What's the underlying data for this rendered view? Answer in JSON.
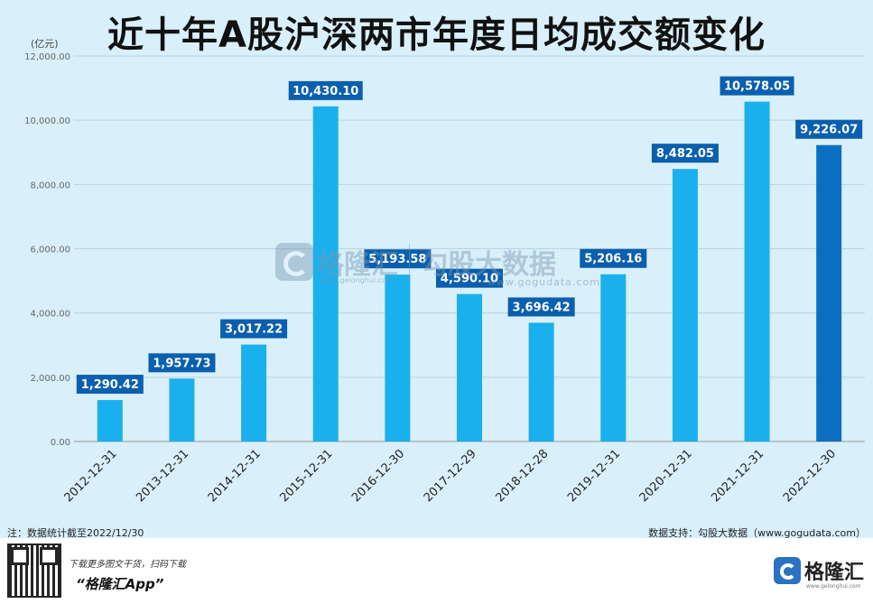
{
  "title": "近十年A股沪深两市年度日均成交额变化",
  "unit_label": "(亿元)",
  "note": "注：数据统计截至2022/12/30",
  "source": "数据支持：勾股大数据（www.gogudata.com）",
  "watermark": {
    "brand": "格隆汇",
    "brand_url": "www.gelonghui.com",
    "sub": "勾股大数据",
    "sub_url": "www.gogudata.com"
  },
  "footer": {
    "text1": "下载更多图文干货，扫码下载",
    "text2": "“格隆汇App”",
    "logo_text": "格隆汇",
    "logo_url": "www.gelonghui.com"
  },
  "colors": {
    "bar": "#1ab0ee",
    "bar_highlight": "#0a6fc2",
    "label_bg": "#0a5fae",
    "background": "#d9f0fb"
  },
  "chart_data": {
    "type": "bar",
    "title": "近十年A股沪深两市年度日均成交额变化",
    "ylabel": "(亿元)",
    "xlabel": "",
    "ylim": [
      0,
      12000
    ],
    "yticks": [
      "0.00",
      "2,000.00",
      "4,000.00",
      "6,000.00",
      "8,000.00",
      "10,000.00",
      "12,000.00"
    ],
    "grid": true,
    "categories": [
      "2012-12-31",
      "2013-12-31",
      "2014-12-31",
      "2015-12-31",
      "2016-12-30",
      "2017-12-29",
      "2018-12-28",
      "2019-12-31",
      "2020-12-31",
      "2021-12-31",
      "2022-12-30"
    ],
    "values": [
      1290.42,
      1957.73,
      3017.22,
      10430.1,
      5193.58,
      4590.1,
      3696.42,
      5206.16,
      8482.05,
      10578.05,
      9226.07
    ],
    "value_labels": [
      "1,290.42",
      "1,957.73",
      "3,017.22",
      "10,430.10",
      "5,193.58",
      "4,590.10",
      "3,696.42",
      "5,206.16",
      "8,482.05",
      "10,578.05",
      "9,226.07"
    ],
    "highlight_index": 10
  }
}
